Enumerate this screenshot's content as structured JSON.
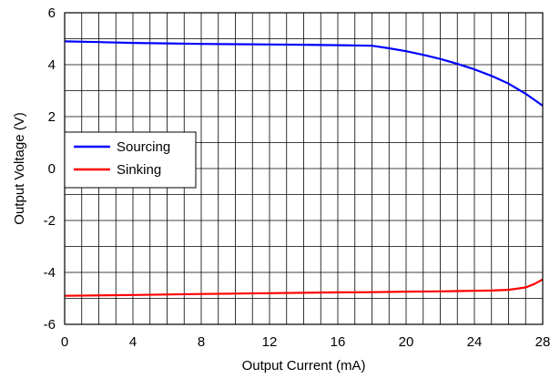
{
  "chart_data": {
    "type": "line",
    "xlabel": "Output Current (mA)",
    "ylabel": "Output Voltage (V)",
    "xlim": [
      0,
      28
    ],
    "ylim": [
      -6,
      6
    ],
    "x_ticks": [
      0,
      4,
      8,
      12,
      16,
      20,
      24,
      28
    ],
    "x_tick_labels": [
      "0",
      "4",
      "8",
      "12",
      "16",
      "20",
      "24",
      "28"
    ],
    "y_ticks": [
      -6,
      -4,
      -2,
      0,
      2,
      4,
      6
    ],
    "y_tick_labels": [
      "-6",
      "-4",
      "-2",
      "0",
      "2",
      "4",
      "6"
    ],
    "x_minor_step": 1,
    "y_minor_step": 1,
    "grid": true,
    "legend_position": "middle-left",
    "series": [
      {
        "name": "Sourcing",
        "color": "#0000ff",
        "x": [
          0,
          2,
          4,
          6,
          8,
          10,
          12,
          14,
          16,
          18,
          19,
          20,
          21,
          22,
          23,
          24,
          25,
          26,
          27,
          28
        ],
        "y": [
          4.9,
          4.87,
          4.84,
          4.82,
          4.8,
          4.79,
          4.78,
          4.77,
          4.75,
          4.73,
          4.63,
          4.52,
          4.38,
          4.22,
          4.03,
          3.82,
          3.57,
          3.27,
          2.88,
          2.42
        ]
      },
      {
        "name": "Sinking",
        "color": "#ff0000",
        "x": [
          0,
          4,
          8,
          12,
          16,
          18,
          20,
          22,
          24,
          25,
          26,
          27,
          27.5,
          28
        ],
        "y": [
          -4.9,
          -4.87,
          -4.83,
          -4.8,
          -4.77,
          -4.76,
          -4.74,
          -4.73,
          -4.71,
          -4.7,
          -4.67,
          -4.58,
          -4.45,
          -4.27
        ]
      }
    ]
  }
}
